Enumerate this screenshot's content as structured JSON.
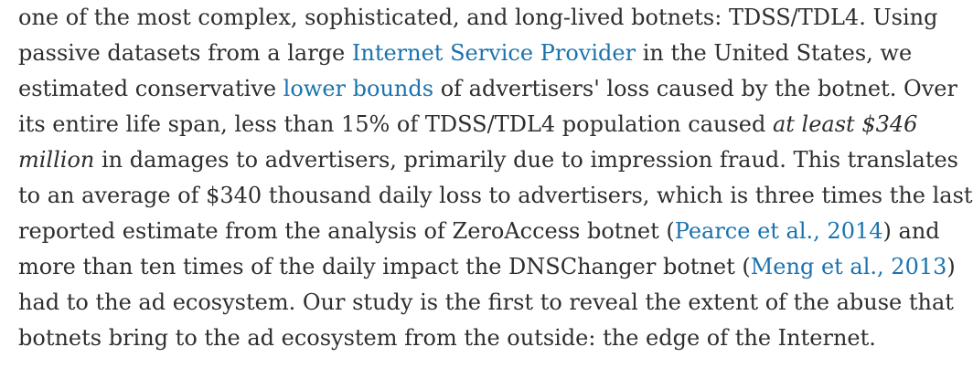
{
  "colors": {
    "text": "#2e2e2e",
    "link": "#1a73ad",
    "background": "#ffffff"
  },
  "paragraph": {
    "l1": "one of the most complex, sophisticated, and long-lived botnets: TDSS/TDL4. Using",
    "l2_a": "passive datasets from a large ",
    "l2_link": "Internet Service Provider",
    "l2_b": " in the United States, we",
    "l3_a": "estimated conservative ",
    "l3_link": "lower bounds",
    "l3_b": " of advertisers' loss caused by the botnet. Over",
    "l4_a": "its entire life span, less than 15% of TDSS/TDL4 population caused ",
    "l4_em": "at least $346",
    "l5_em": "million",
    "l5_b": " in damages to advertisers, primarily due to impression fraud. This translates",
    "l6": "to an average of $340 thousand daily loss to advertisers, which is three times the last",
    "l7_a": "reported estimate from the analysis of ZeroAccess botnet (",
    "l7_link": "Pearce et al., 2014",
    "l7_b": ") and",
    "l8_a": "more than ten times of the daily impact the DNSChanger botnet (",
    "l8_link": "Meng et al., 2013",
    "l8_b": ")",
    "l9": "had to the ad ecosystem. Our study is the first to reveal the extent of the abuse that",
    "l10": "botnets bring to the ad ecosystem from the outside: the edge of the Internet."
  }
}
